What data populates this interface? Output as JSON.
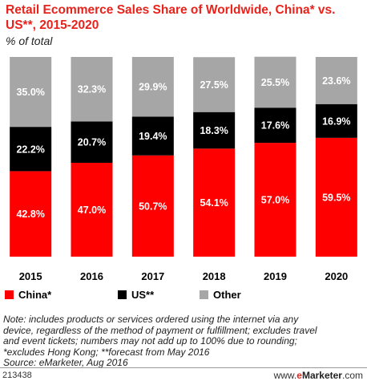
{
  "title": "Retail Ecommerce Sales Share of Worldwide, China* vs. US**, 2015-2020",
  "subtitle": "% of total",
  "chart_data": {
    "type": "bar",
    "stacked": true,
    "categories": [
      "2015",
      "2016",
      "2017",
      "2018",
      "2019",
      "2020"
    ],
    "series": [
      {
        "name": "China*",
        "color": "#ff0000",
        "values": [
          42.8,
          47.0,
          50.7,
          54.1,
          57.0,
          59.5
        ],
        "labels": [
          "42.8%",
          "47.0%",
          "50.7%",
          "54.1%",
          "57.0%",
          "59.5%"
        ]
      },
      {
        "name": "US**",
        "color": "#000000",
        "values": [
          22.2,
          20.7,
          19.4,
          18.3,
          17.6,
          16.9
        ],
        "labels": [
          "22.2%",
          "20.7%",
          "19.4%",
          "18.3%",
          "17.6%",
          "16.9%"
        ]
      },
      {
        "name": "Other",
        "color": "#a6a6a6",
        "values": [
          35.0,
          32.3,
          29.9,
          27.5,
          25.5,
          23.6
        ],
        "labels": [
          "35.0%",
          "32.3%",
          "29.9%",
          "27.5%",
          "25.5%",
          "23.6%"
        ]
      }
    ],
    "ylim": [
      0,
      100
    ],
    "legend_position": "bottom"
  },
  "note_lines": [
    "Note: includes products or services ordered using the internet via any",
    "device, regardless of the method of payment or fulfillment; excludes travel",
    "and event tickets; numbers may not add up to 100% due to rounding;",
    "*excludes Hong Kong; **forecast from May 2016",
    "Source: eMarketer, Aug 2016"
  ],
  "footer": {
    "id": "213438",
    "brand_prefix": "www.",
    "brand_highlight": "e",
    "brand_name": "Marketer",
    "brand_suffix": ".com"
  }
}
